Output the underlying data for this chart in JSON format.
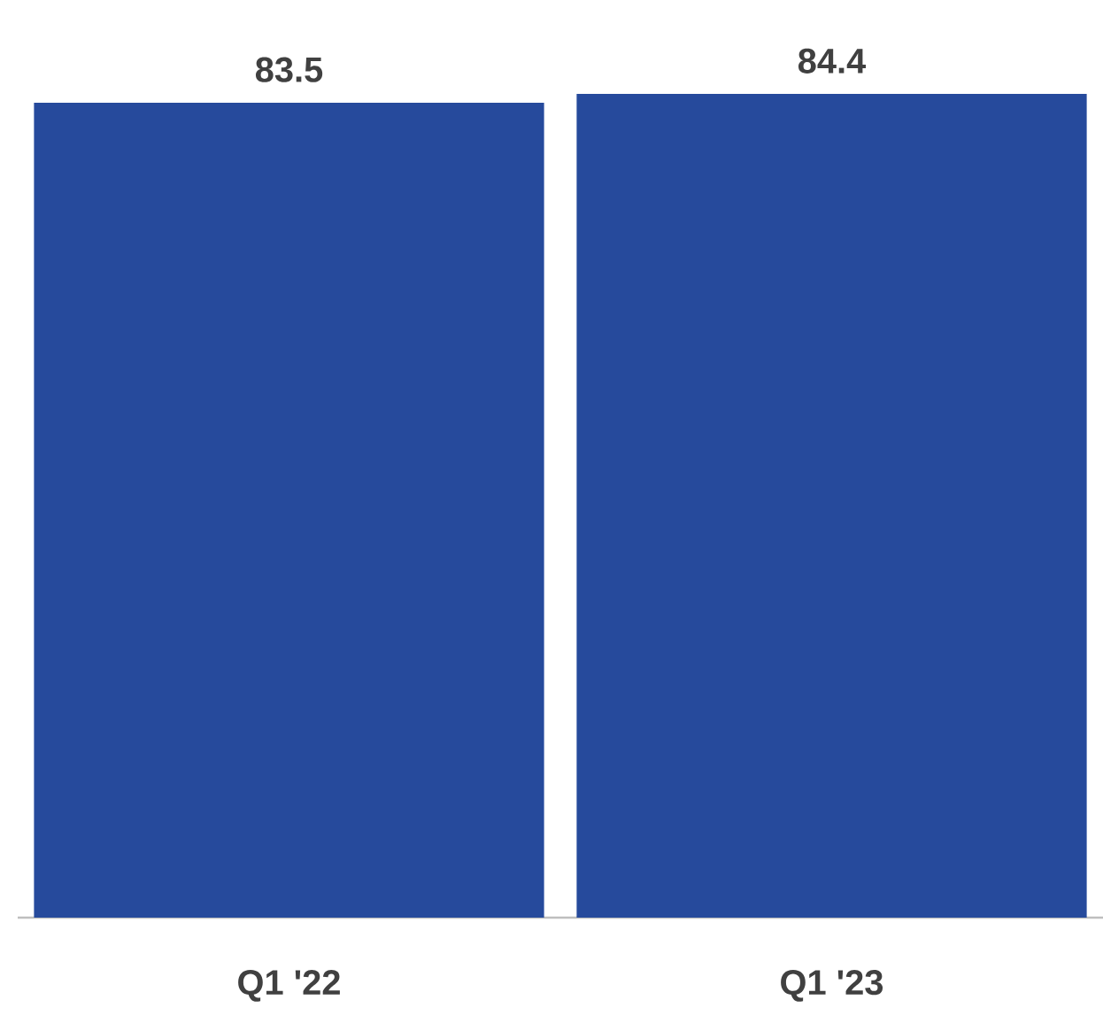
{
  "chart_data": {
    "type": "bar",
    "categories": [
      "Q1 '22",
      "Q1 '23"
    ],
    "values": [
      83.5,
      84.4
    ],
    "color": "#264a9c",
    "data_labels": true
  }
}
